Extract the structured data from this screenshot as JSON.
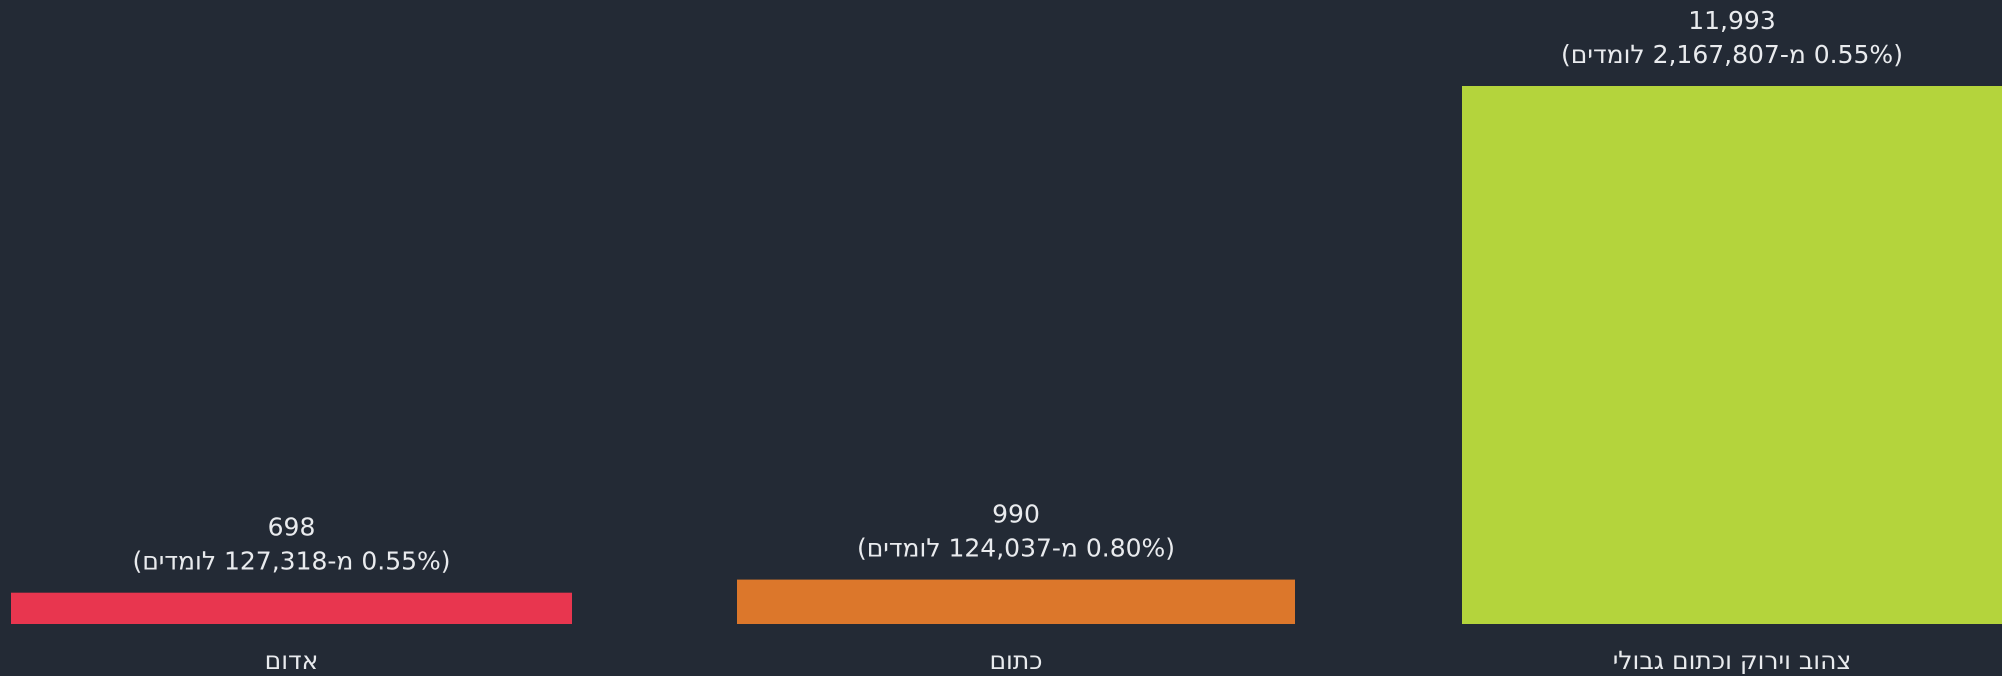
{
  "chart_data": {
    "type": "bar",
    "categories": [
      "אדום",
      "כתום",
      "צהוב וירוק וכתום גבולי"
    ],
    "values": [
      698,
      990,
      11993
    ],
    "value_labels": [
      "698",
      "990",
      "11,993"
    ],
    "annotations": [
      "(0.55% מ-127,318 לומדים)",
      "(0.80% מ-124,037 לומדים)",
      "(0.55% מ-2,167,807 לומדים)"
    ],
    "colors": [
      "#e8364f",
      "#dc772b",
      "#b4d43c"
    ]
  }
}
